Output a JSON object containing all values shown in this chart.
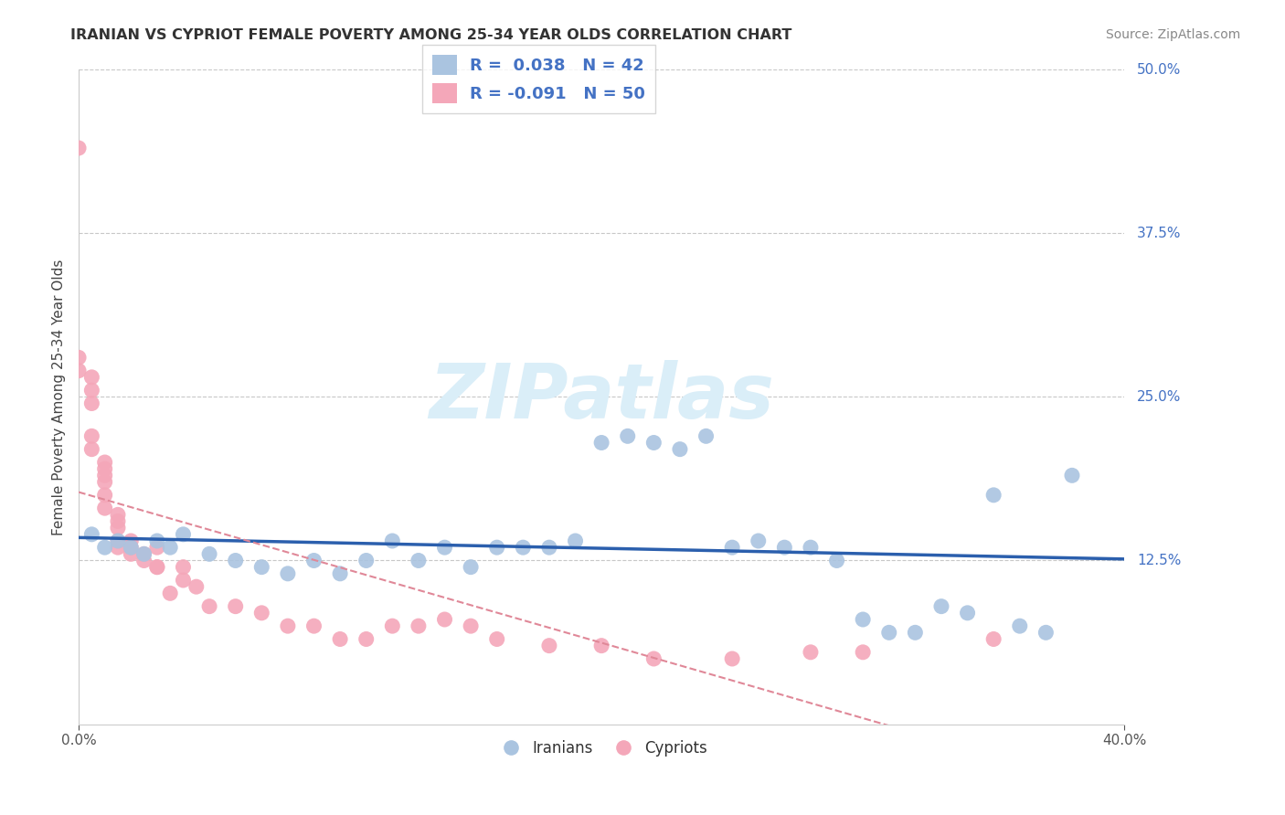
{
  "title": "IRANIAN VS CYPRIOT FEMALE POVERTY AMONG 25-34 YEAR OLDS CORRELATION CHART",
  "source": "Source: ZipAtlas.com",
  "ylabel": "Female Poverty Among 25-34 Year Olds",
  "xlim": [
    0.0,
    0.4
  ],
  "ylim": [
    0.0,
    0.5
  ],
  "ytick_values": [
    0.125,
    0.25,
    0.375,
    0.5
  ],
  "ytick_labels": [
    "12.5%",
    "25.0%",
    "37.5%",
    "50.0%"
  ],
  "xtick_values": [
    0.0,
    0.4
  ],
  "xtick_labels": [
    "0.0%",
    "40.0%"
  ],
  "grid_color": "#c8c8c8",
  "background_color": "#ffffff",
  "iranians_color": "#aac4e0",
  "cypriot_color": "#f4a7b9",
  "iranians_line_color": "#2b5fad",
  "cypriot_line_color": "#e08898",
  "legend_text_color": "#4472c4",
  "iranians_R": 0.038,
  "iranians_N": 42,
  "cypriot_R": -0.091,
  "cypriot_N": 50,
  "watermark_color": "#daeef8",
  "iranians_x": [
    0.005,
    0.01,
    0.015,
    0.02,
    0.025,
    0.03,
    0.035,
    0.04,
    0.05,
    0.06,
    0.07,
    0.08,
    0.09,
    0.1,
    0.11,
    0.12,
    0.13,
    0.14,
    0.15,
    0.16,
    0.17,
    0.18,
    0.19,
    0.2,
    0.21,
    0.22,
    0.23,
    0.24,
    0.25,
    0.26,
    0.27,
    0.28,
    0.29,
    0.3,
    0.31,
    0.32,
    0.33,
    0.34,
    0.35,
    0.36,
    0.37,
    0.38
  ],
  "iranians_y": [
    0.145,
    0.135,
    0.14,
    0.135,
    0.13,
    0.14,
    0.135,
    0.145,
    0.13,
    0.125,
    0.12,
    0.115,
    0.125,
    0.115,
    0.125,
    0.14,
    0.125,
    0.135,
    0.12,
    0.135,
    0.135,
    0.135,
    0.14,
    0.215,
    0.22,
    0.215,
    0.21,
    0.22,
    0.135,
    0.14,
    0.135,
    0.135,
    0.125,
    0.08,
    0.07,
    0.07,
    0.09,
    0.085,
    0.175,
    0.075,
    0.07,
    0.19
  ],
  "cypriot_x": [
    0.0,
    0.0,
    0.0,
    0.005,
    0.005,
    0.005,
    0.005,
    0.005,
    0.01,
    0.01,
    0.01,
    0.01,
    0.01,
    0.01,
    0.015,
    0.015,
    0.015,
    0.015,
    0.015,
    0.02,
    0.02,
    0.02,
    0.025,
    0.025,
    0.03,
    0.03,
    0.03,
    0.035,
    0.04,
    0.04,
    0.045,
    0.05,
    0.06,
    0.07,
    0.08,
    0.09,
    0.1,
    0.11,
    0.12,
    0.13,
    0.14,
    0.15,
    0.16,
    0.18,
    0.2,
    0.22,
    0.25,
    0.28,
    0.3,
    0.35
  ],
  "cypriot_y": [
    0.44,
    0.28,
    0.27,
    0.265,
    0.255,
    0.245,
    0.22,
    0.21,
    0.2,
    0.195,
    0.19,
    0.185,
    0.175,
    0.165,
    0.16,
    0.155,
    0.15,
    0.14,
    0.135,
    0.14,
    0.135,
    0.13,
    0.13,
    0.125,
    0.12,
    0.135,
    0.12,
    0.1,
    0.12,
    0.11,
    0.105,
    0.09,
    0.09,
    0.085,
    0.075,
    0.075,
    0.065,
    0.065,
    0.075,
    0.075,
    0.08,
    0.075,
    0.065,
    0.06,
    0.06,
    0.05,
    0.05,
    0.055,
    0.055,
    0.065
  ]
}
